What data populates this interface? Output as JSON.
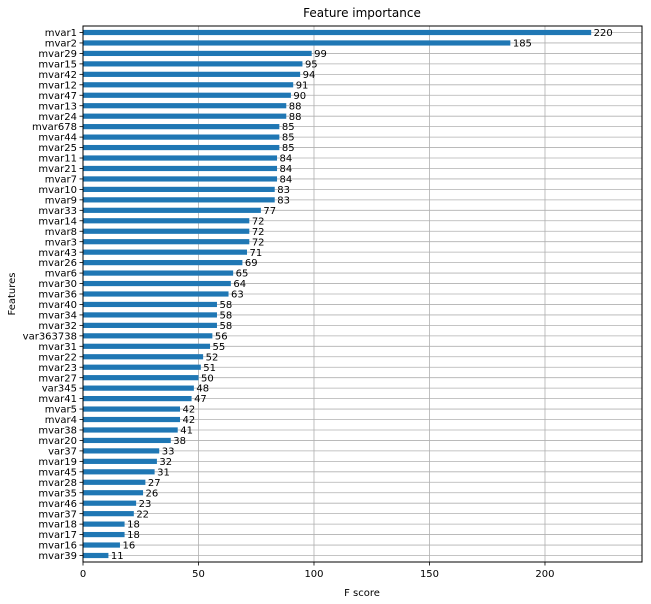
{
  "chart_data": {
    "type": "bar",
    "orientation": "horizontal",
    "title": "Feature importance",
    "xlabel": "F score",
    "ylabel": "Features",
    "xlim": [
      0,
      242
    ],
    "xticks": [
      0,
      50,
      100,
      150,
      200
    ],
    "grid": true,
    "bar_color": "#1f77b4",
    "categories": [
      "mvar1",
      "mvar2",
      "mvar29",
      "mvar15",
      "mvar42",
      "mvar12",
      "mvar47",
      "mvar13",
      "mvar24",
      "mvar678",
      "mvar44",
      "mvar25",
      "mvar11",
      "mvar21",
      "mvar7",
      "mvar10",
      "mvar9",
      "mvar33",
      "mvar14",
      "mvar8",
      "mvar3",
      "mvar43",
      "mvar26",
      "mvar6",
      "mvar30",
      "mvar36",
      "mvar40",
      "mvar34",
      "mvar32",
      "var363738",
      "mvar31",
      "mvar22",
      "mvar23",
      "mvar27",
      "var345",
      "mvar41",
      "mvar5",
      "mvar4",
      "mvar38",
      "mvar20",
      "var37",
      "mvar19",
      "mvar45",
      "mvar28",
      "mvar35",
      "mvar46",
      "mvar37",
      "mvar18",
      "mvar17",
      "mvar16",
      "mvar39"
    ],
    "values": [
      220,
      185,
      99,
      95,
      94,
      91,
      90,
      88,
      88,
      85,
      85,
      85,
      84,
      84,
      84,
      83,
      83,
      77,
      72,
      72,
      72,
      71,
      69,
      65,
      64,
      63,
      58,
      58,
      58,
      56,
      55,
      52,
      51,
      50,
      48,
      47,
      42,
      42,
      41,
      38,
      33,
      32,
      31,
      27,
      26,
      23,
      22,
      18,
      18,
      16,
      11
    ]
  }
}
